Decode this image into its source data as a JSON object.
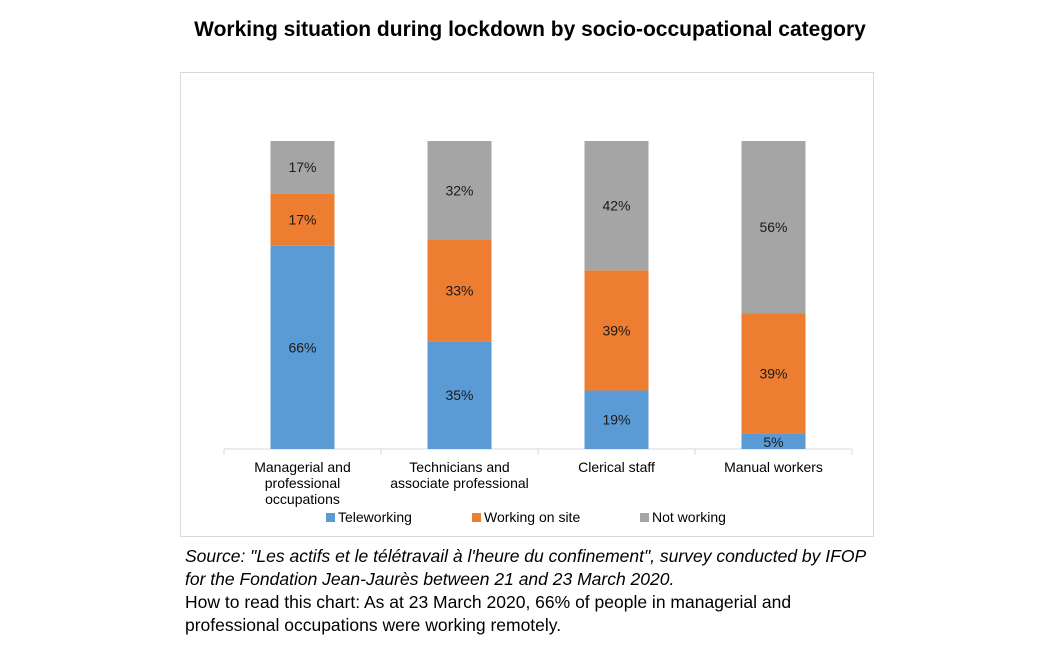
{
  "chart_data": {
    "type": "bar",
    "stacked": true,
    "title": "Working situation during lockdown by socio-occupational category",
    "categories": [
      [
        "Managerial and",
        "professional",
        "occupations"
      ],
      [
        "Technicians and",
        "associate professional"
      ],
      [
        "Clerical staff"
      ],
      [
        "Manual workers"
      ]
    ],
    "series": [
      {
        "name": "Teleworking",
        "color": "#5b9bd5",
        "values": [
          66,
          35,
          19,
          5
        ],
        "labels": [
          "66%",
          "35%",
          "19%",
          "5%"
        ]
      },
      {
        "name": "Working on site",
        "color": "#ed7d31",
        "values": [
          17,
          33,
          39,
          39
        ],
        "labels": [
          "17%",
          "33%",
          "39%",
          "39%"
        ]
      },
      {
        "name": "Not working",
        "color": "#a5a5a5",
        "values": [
          17,
          32,
          42,
          56
        ],
        "labels": [
          "17%",
          "32%",
          "42%",
          "56%"
        ]
      }
    ],
    "ylim": [
      0,
      100
    ],
    "legend_position": "bottom"
  },
  "caption": {
    "source": "Source: \"Les actifs et le télétravail à l'heure du confinement\", survey conducted by IFOP for the Fondation Jean-Jaurès between 21 and 23 March 2020.",
    "how_to_read": "How to read this chart: As at 23 March 2020, 66% of people in managerial and professional occupations were working remotely."
  }
}
